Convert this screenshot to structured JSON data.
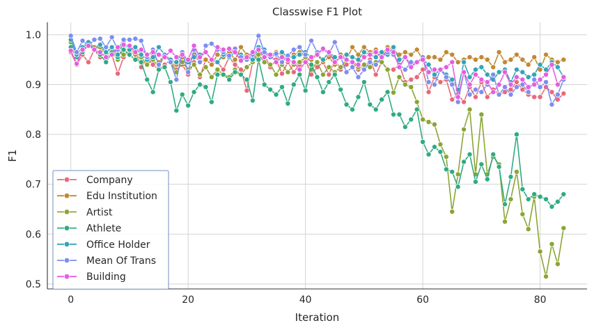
{
  "chart_data": {
    "type": "line",
    "title": "Classwise F1 Plot",
    "xlabel": "Iteration",
    "ylabel": "F1",
    "xlim": [
      -4,
      88
    ],
    "ylim": [
      0.49,
      1.025
    ],
    "xticks": [
      0,
      20,
      40,
      60,
      80
    ],
    "yticks": [
      0.5,
      0.6,
      0.7,
      0.8,
      0.9,
      1.0
    ],
    "ytick_labels": [
      "0.5",
      "0.6",
      "0.7",
      "0.8",
      "0.9",
      "1.0"
    ],
    "grid": true,
    "legend_position": "lower-left",
    "x": [
      0,
      1,
      2,
      3,
      4,
      5,
      6,
      7,
      8,
      9,
      10,
      11,
      12,
      13,
      14,
      15,
      16,
      17,
      18,
      19,
      20,
      21,
      22,
      23,
      24,
      25,
      26,
      27,
      28,
      29,
      30,
      31,
      32,
      33,
      34,
      35,
      36,
      37,
      38,
      39,
      40,
      41,
      42,
      43,
      44,
      45,
      46,
      47,
      48,
      49,
      50,
      51,
      52,
      53,
      54,
      55,
      56,
      57,
      58,
      59,
      60,
      61,
      62,
      63,
      64,
      65,
      66,
      67,
      68,
      69,
      70,
      71,
      72,
      73,
      74,
      75,
      76,
      77,
      78,
      79,
      80,
      81,
      82,
      83,
      84
    ],
    "series": [
      {
        "name": "Company",
        "color": "#e8697a",
        "values": [
          0.965,
          0.94,
          0.96,
          0.945,
          0.97,
          0.955,
          0.95,
          0.96,
          0.922,
          0.955,
          0.97,
          0.965,
          0.935,
          0.955,
          0.94,
          0.93,
          0.94,
          0.95,
          0.93,
          0.94,
          0.92,
          0.945,
          0.915,
          0.95,
          0.94,
          0.945,
          0.93,
          0.955,
          0.94,
          0.93,
          0.888,
          0.945,
          0.97,
          0.96,
          0.935,
          0.95,
          0.922,
          0.945,
          0.925,
          0.94,
          0.95,
          0.92,
          0.935,
          0.945,
          0.92,
          0.95,
          0.93,
          0.94,
          0.945,
          0.93,
          0.935,
          0.95,
          0.92,
          0.945,
          0.93,
          0.93,
          0.94,
          0.905,
          0.91,
          0.915,
          0.93,
          0.885,
          0.915,
          0.905,
          0.91,
          0.87,
          0.88,
          0.865,
          0.895,
          0.875,
          0.905,
          0.875,
          0.89,
          0.88,
          0.885,
          0.89,
          0.905,
          0.89,
          0.88,
          0.875,
          0.875,
          0.895,
          0.885,
          0.87,
          0.882
        ]
      },
      {
        "name": "Edu Institution",
        "color": "#c08a32",
        "values": [
          0.975,
          0.96,
          0.965,
          0.985,
          0.975,
          0.98,
          0.965,
          0.97,
          0.955,
          0.975,
          0.965,
          0.96,
          0.95,
          0.94,
          0.96,
          0.945,
          0.96,
          0.95,
          0.94,
          0.955,
          0.945,
          0.96,
          0.945,
          0.95,
          0.94,
          0.96,
          0.955,
          0.965,
          0.95,
          0.975,
          0.96,
          0.95,
          0.965,
          0.955,
          0.96,
          0.965,
          0.96,
          0.95,
          0.96,
          0.965,
          0.955,
          0.95,
          0.96,
          0.945,
          0.955,
          0.94,
          0.96,
          0.95,
          0.975,
          0.96,
          0.975,
          0.965,
          0.97,
          0.96,
          0.975,
          0.97,
          0.96,
          0.965,
          0.96,
          0.97,
          0.95,
          0.955,
          0.955,
          0.95,
          0.965,
          0.96,
          0.945,
          0.95,
          0.955,
          0.95,
          0.955,
          0.95,
          0.935,
          0.965,
          0.945,
          0.95,
          0.96,
          0.95,
          0.94,
          0.955,
          0.93,
          0.96,
          0.95,
          0.945,
          0.95
        ]
      },
      {
        "name": "Artist",
        "color": "#8aa533",
        "values": [
          0.985,
          0.96,
          0.975,
          0.98,
          0.97,
          0.975,
          0.96,
          0.965,
          0.95,
          0.96,
          0.965,
          0.965,
          0.955,
          0.94,
          0.95,
          0.935,
          0.96,
          0.945,
          0.925,
          0.945,
          0.93,
          0.94,
          0.92,
          0.935,
          0.915,
          0.93,
          0.92,
          0.915,
          0.93,
          0.92,
          0.935,
          0.945,
          0.96,
          0.945,
          0.94,
          0.92,
          0.94,
          0.925,
          0.94,
          0.945,
          0.955,
          0.93,
          0.945,
          0.92,
          0.935,
          0.925,
          0.935,
          0.95,
          0.945,
          0.935,
          0.94,
          0.935,
          0.945,
          0.945,
          0.93,
          0.884,
          0.915,
          0.9,
          0.895,
          0.865,
          0.83,
          0.825,
          0.82,
          0.78,
          0.755,
          0.645,
          0.72,
          0.81,
          0.85,
          0.72,
          0.84,
          0.72,
          0.755,
          0.74,
          0.625,
          0.67,
          0.725,
          0.64,
          0.61,
          0.675,
          0.565,
          0.515,
          0.58,
          0.54,
          0.612
        ]
      },
      {
        "name": "Athlete",
        "color": "#2fab82",
        "values": [
          0.975,
          0.955,
          0.965,
          0.98,
          0.97,
          0.96,
          0.945,
          0.965,
          0.955,
          0.97,
          0.96,
          0.95,
          0.945,
          0.91,
          0.885,
          0.93,
          0.935,
          0.905,
          0.848,
          0.88,
          0.858,
          0.885,
          0.9,
          0.895,
          0.865,
          0.92,
          0.92,
          0.91,
          0.925,
          0.92,
          0.91,
          0.868,
          0.95,
          0.9,
          0.89,
          0.88,
          0.895,
          0.862,
          0.9,
          0.92,
          0.888,
          0.94,
          0.915,
          0.885,
          0.905,
          0.92,
          0.89,
          0.86,
          0.85,
          0.875,
          0.905,
          0.86,
          0.85,
          0.87,
          0.885,
          0.84,
          0.84,
          0.815,
          0.83,
          0.85,
          0.785,
          0.76,
          0.775,
          0.765,
          0.73,
          0.725,
          0.695,
          0.745,
          0.76,
          0.705,
          0.74,
          0.71,
          0.76,
          0.735,
          0.66,
          0.715,
          0.8,
          0.69,
          0.67,
          0.68,
          0.675,
          0.67,
          0.655,
          0.665,
          0.68
        ]
      },
      {
        "name": "Office Holder",
        "color": "#32a4b9",
        "values": [
          0.99,
          0.96,
          0.975,
          0.985,
          0.97,
          0.98,
          0.965,
          0.975,
          0.96,
          0.985,
          0.97,
          0.975,
          0.96,
          0.95,
          0.955,
          0.975,
          0.96,
          0.95,
          0.945,
          0.965,
          0.945,
          0.955,
          0.96,
          0.965,
          0.95,
          0.945,
          0.96,
          0.955,
          0.965,
          0.96,
          0.955,
          0.95,
          0.975,
          0.97,
          0.955,
          0.96,
          0.965,
          0.955,
          0.955,
          0.96,
          0.965,
          0.955,
          0.96,
          0.95,
          0.965,
          0.955,
          0.955,
          0.96,
          0.955,
          0.95,
          0.965,
          0.96,
          0.955,
          0.965,
          0.96,
          0.975,
          0.95,
          0.955,
          0.94,
          0.945,
          0.95,
          0.94,
          0.92,
          0.93,
          0.92,
          0.91,
          0.89,
          0.945,
          0.915,
          0.93,
          0.935,
          0.92,
          0.91,
          0.925,
          0.93,
          0.905,
          0.93,
          0.925,
          0.915,
          0.92,
          0.94,
          0.93,
          0.945,
          0.935,
          0.915
        ]
      },
      {
        "name": "Mean Of Trans",
        "color": "#7d8ef0",
        "values": [
          0.998,
          0.965,
          0.988,
          0.978,
          0.99,
          0.992,
          0.975,
          0.995,
          0.97,
          0.99,
          0.99,
          0.992,
          0.988,
          0.955,
          0.97,
          0.94,
          0.96,
          0.945,
          0.91,
          0.965,
          0.925,
          0.97,
          0.945,
          0.978,
          0.982,
          0.97,
          0.965,
          0.958,
          0.972,
          0.955,
          0.95,
          0.96,
          0.998,
          0.965,
          0.955,
          0.962,
          0.945,
          0.958,
          0.97,
          0.975,
          0.96,
          0.988,
          0.965,
          0.97,
          0.962,
          0.985,
          0.955,
          0.925,
          0.935,
          0.915,
          0.93,
          0.945,
          0.94,
          0.955,
          0.965,
          0.96,
          0.94,
          0.93,
          0.945,
          0.945,
          0.955,
          0.905,
          0.9,
          0.93,
          0.915,
          0.9,
          0.865,
          0.925,
          0.88,
          0.89,
          0.885,
          0.9,
          0.92,
          0.88,
          0.895,
          0.88,
          0.895,
          0.9,
          0.885,
          0.91,
          0.895,
          0.905,
          0.86,
          0.88,
          0.91
        ]
      },
      {
        "name": "Building",
        "color": "#e65de0",
        "values": [
          0.968,
          0.942,
          0.97,
          0.978,
          0.97,
          0.965,
          0.955,
          0.96,
          0.975,
          0.98,
          0.978,
          0.965,
          0.97,
          0.96,
          0.965,
          0.96,
          0.955,
          0.968,
          0.955,
          0.96,
          0.95,
          0.978,
          0.955,
          0.965,
          0.95,
          0.975,
          0.97,
          0.972,
          0.965,
          0.948,
          0.955,
          0.965,
          0.97,
          0.955,
          0.96,
          0.945,
          0.955,
          0.95,
          0.945,
          0.93,
          0.945,
          0.955,
          0.96,
          0.972,
          0.965,
          0.945,
          0.955,
          0.95,
          0.945,
          0.94,
          0.955,
          0.96,
          0.965,
          0.955,
          0.97,
          0.965,
          0.935,
          0.955,
          0.935,
          0.945,
          0.95,
          0.925,
          0.93,
          0.93,
          0.935,
          0.945,
          0.875,
          0.925,
          0.9,
          0.92,
          0.91,
          0.905,
          0.885,
          0.9,
          0.925,
          0.9,
          0.915,
          0.91,
          0.895,
          0.9,
          0.91,
          0.92,
          0.94,
          0.9,
          0.915
        ]
      }
    ]
  }
}
